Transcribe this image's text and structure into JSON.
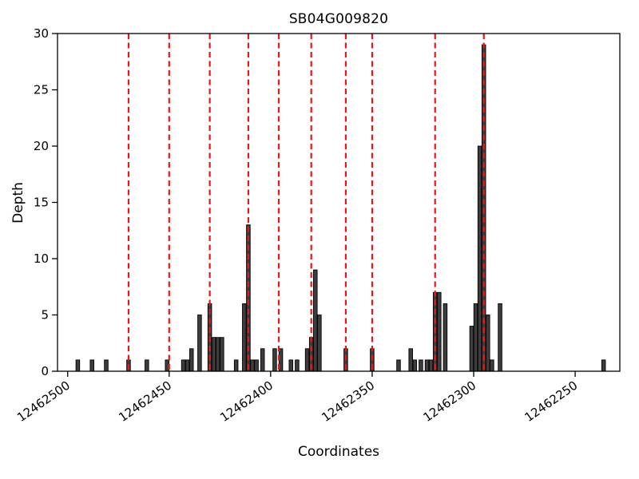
{
  "title": "SB04G009820",
  "chart_data": {
    "type": "bar",
    "title": "SB04G009820",
    "xlabel": "Coordinates",
    "ylabel": "Depth",
    "ylim": [
      0,
      30
    ],
    "yticks": [
      0,
      5,
      10,
      15,
      20,
      25,
      30
    ],
    "x_axis": {
      "reversed": true,
      "max": 12462505,
      "min": 12462228,
      "ticks": [
        {
          "value": 12462500,
          "label": "12462500"
        },
        {
          "value": 12462450,
          "label": "12462450"
        },
        {
          "value": 12462400,
          "label": "12462400"
        },
        {
          "value": 12462350,
          "label": "12462350"
        },
        {
          "value": 12462300,
          "label": "12462300"
        },
        {
          "value": 12462250,
          "label": "12462250"
        }
      ]
    },
    "grid": false,
    "legend": "none",
    "bar_color": "#3d3d3d",
    "bar_edge_color": "#000000",
    "bars": [
      [
        12462495,
        1
      ],
      [
        12462488,
        1
      ],
      [
        12462481,
        1
      ],
      [
        12462470,
        1
      ],
      [
        12462461,
        1
      ],
      [
        12462451,
        1
      ],
      [
        12462443,
        1
      ],
      [
        12462441,
        1
      ],
      [
        12462439,
        2
      ],
      [
        12462435,
        5
      ],
      [
        12462430,
        6
      ],
      [
        12462428,
        3
      ],
      [
        12462426,
        3
      ],
      [
        12462424,
        3
      ],
      [
        12462417,
        1
      ],
      [
        12462413,
        6
      ],
      [
        12462411,
        13
      ],
      [
        12462409,
        1
      ],
      [
        12462407,
        1
      ],
      [
        12462404,
        2
      ],
      [
        12462398,
        2
      ],
      [
        12462395,
        2
      ],
      [
        12462390,
        1
      ],
      [
        12462387,
        1
      ],
      [
        12462382,
        2
      ],
      [
        12462380,
        3
      ],
      [
        12462378,
        9
      ],
      [
        12462376,
        5
      ],
      [
        12462363,
        2
      ],
      [
        12462350,
        2
      ],
      [
        12462337,
        1
      ],
      [
        12462331,
        2
      ],
      [
        12462329,
        1
      ],
      [
        12462326,
        1
      ],
      [
        12462323,
        1
      ],
      [
        12462321,
        1
      ],
      [
        12462319,
        7
      ],
      [
        12462317,
        7
      ],
      [
        12462314,
        6
      ],
      [
        12462301,
        4
      ],
      [
        12462299,
        6
      ],
      [
        12462297,
        20
      ],
      [
        12462295,
        29
      ],
      [
        12462293,
        5
      ],
      [
        12462291,
        1
      ],
      [
        12462287,
        6
      ],
      [
        12462236,
        1
      ]
    ],
    "vlines": {
      "color": "#f01414",
      "style": "dashed",
      "positions": [
        12462470,
        12462450,
        12462430,
        12462411,
        12462396,
        12462380,
        12462363,
        12462350,
        12462319,
        12462295
      ]
    }
  }
}
